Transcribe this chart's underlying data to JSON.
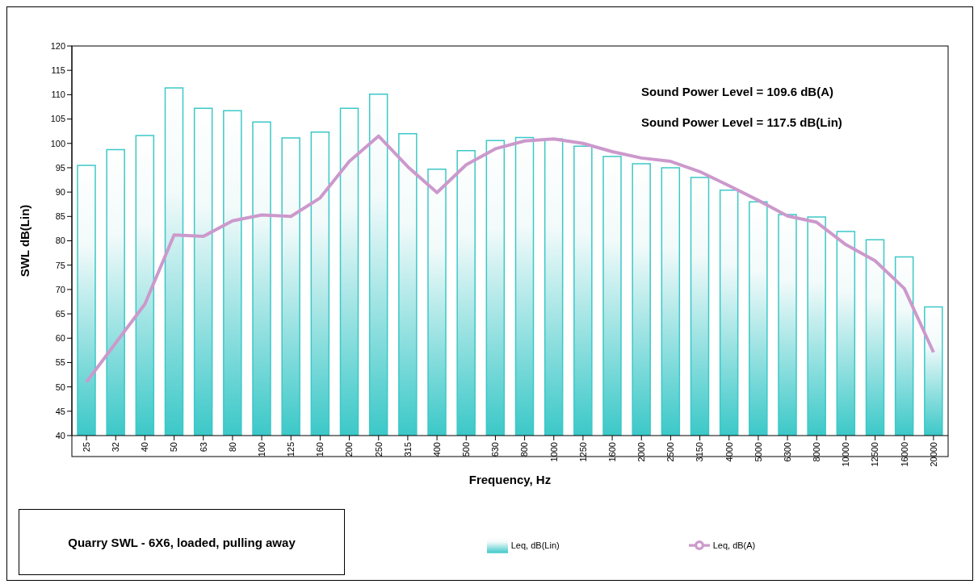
{
  "chart_data": {
    "type": "bar",
    "title": "Quarry SWL - 6X6, loaded, pulling away",
    "xlabel": "Frequency, Hz",
    "ylabel": "SWL dB(Lin)",
    "categories": [
      "25",
      "32",
      "40",
      "50",
      "63",
      "80",
      "100",
      "125",
      "160",
      "200",
      "250",
      "315",
      "400",
      "500",
      "630",
      "800",
      "1000",
      "1250",
      "1600",
      "2000",
      "2500",
      "3150",
      "4000",
      "5000",
      "6300",
      "8000",
      "10000",
      "12500",
      "16000",
      "20000"
    ],
    "series": [
      {
        "name": "Leq, dB(Lin)",
        "color": "#3cc8c8",
        "values": [
          95.5,
          98.7,
          101.6,
          111.4,
          107.2,
          106.7,
          104.4,
          101.1,
          102.3,
          107.2,
          110.1,
          102.0,
          94.7,
          98.5,
          100.6,
          101.2,
          100.9,
          99.4,
          97.3,
          95.8,
          95.0,
          93.0,
          90.4,
          88.0,
          85.4,
          84.9,
          81.9,
          80.2,
          76.7,
          66.4
        ]
      },
      {
        "name": "Leq, dB(A)",
        "type": "line",
        "color": "#cc99cc",
        "values": [
          51,
          59,
          67,
          81.2,
          80.9,
          84.1,
          85.3,
          85.0,
          88.8,
          96.3,
          101.5,
          95.2,
          89.9,
          95.6,
          98.9,
          100.5,
          100.9,
          100.0,
          98.3,
          97.0,
          96.3,
          94.2,
          91.3,
          88.3,
          85.1,
          83.8,
          79.2,
          75.9,
          70.2,
          57.1
        ]
      }
    ],
    "ylim": [
      40,
      120
    ],
    "yticks": [
      40,
      45,
      50,
      55,
      60,
      65,
      70,
      75,
      80,
      85,
      90,
      95,
      100,
      105,
      110,
      115,
      120
    ],
    "annotations": [
      "Sound Power Level = 109.6 dB(A)",
      "Sound Power Level = 117.5 dB(Lin)"
    ],
    "grid": false,
    "legend": "bottom right",
    "marker": "none",
    "line_style": "solid"
  }
}
